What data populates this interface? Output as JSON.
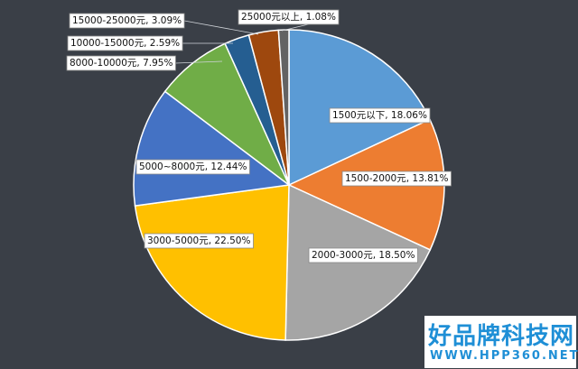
{
  "chart_data": {
    "type": "pie",
    "title": "",
    "start_angle_deg": 0,
    "direction": "clockwise",
    "slices": [
      {
        "label": "1500元以下",
        "value": 18.06,
        "display": "1500元以下, 18.06%",
        "color": "#5b9bd5"
      },
      {
        "label": "1500-2000元",
        "value": 13.81,
        "display": "1500-2000元, 13.81%",
        "color": "#ed7d31"
      },
      {
        "label": "2000-3000元",
        "value": 18.5,
        "display": "2000-3000元, 18.50%",
        "color": "#a5a5a5"
      },
      {
        "label": "3000-5000元",
        "value": 22.5,
        "display": "3000-5000元, 22.50%",
        "color": "#ffc000"
      },
      {
        "label": "5000~8000元",
        "value": 12.44,
        "display": "5000~8000元, 12.44%",
        "color": "#4472c4"
      },
      {
        "label": "8000-10000元",
        "value": 7.95,
        "display": "8000-10000元, 7.95%",
        "color": "#70ad47"
      },
      {
        "label": "10000-15000元",
        "value": 2.59,
        "display": "10000-15000元, 2.59%",
        "color": "#255e91"
      },
      {
        "label": "15000-25000元",
        "value": 3.09,
        "display": "15000-25000元, 3.09%",
        "color": "#9e480e"
      },
      {
        "label": "25000元以上",
        "value": 1.08,
        "display": "25000元以上, 1.08%",
        "color": "#636363"
      }
    ],
    "legend": "none"
  },
  "watermark": {
    "main": "好品牌科技网",
    "sub": "WWW.HPP360.NET"
  }
}
